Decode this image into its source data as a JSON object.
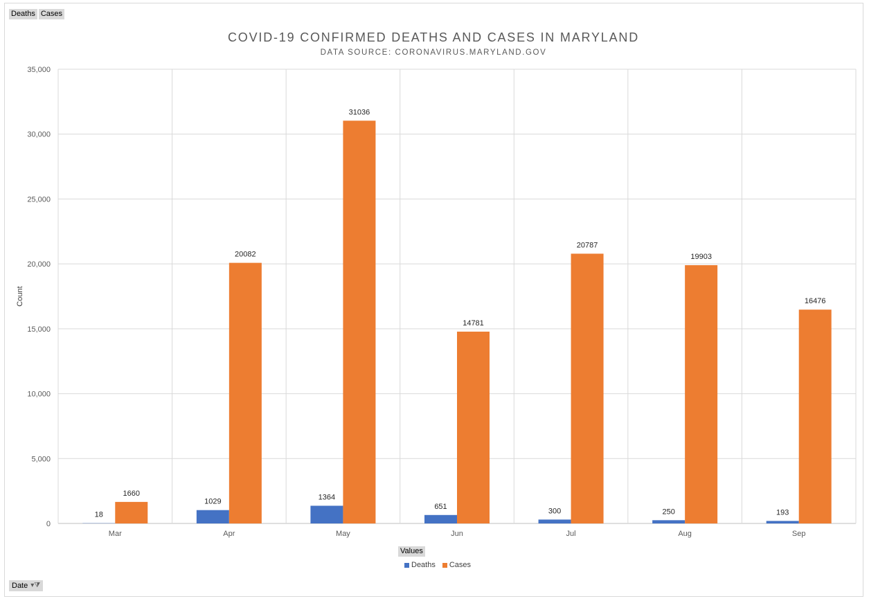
{
  "field_buttons": [
    "Deaths",
    "Cases"
  ],
  "values_button": "Values",
  "date_filter_label": "Date",
  "chart_data": {
    "type": "bar",
    "title": "COVID-19 CONFIRMED DEATHS AND CASES IN MARYLAND",
    "subtitle": "DATA SOURCE: CORONAVIRUS.MARYLAND.GOV",
    "xlabel": "",
    "ylabel": "Count",
    "ylim": [
      0,
      35000
    ],
    "yticks": [
      0,
      5000,
      10000,
      15000,
      20000,
      25000,
      30000,
      35000
    ],
    "ytick_labels": [
      "0",
      "5,000",
      "10,000",
      "15,000",
      "20,000",
      "25,000",
      "30,000",
      "35,000"
    ],
    "categories": [
      "Mar",
      "Apr",
      "May",
      "Jun",
      "Jul",
      "Aug",
      "Sep"
    ],
    "series": [
      {
        "name": "Deaths",
        "color": "#4472c4",
        "values": [
          18,
          1029,
          1364,
          651,
          300,
          250,
          193
        ]
      },
      {
        "name": "Cases",
        "color": "#ed7d31",
        "values": [
          1660,
          20082,
          31036,
          14781,
          20787,
          19903,
          16476
        ]
      }
    ],
    "grid": true,
    "legend": "bottom"
  }
}
